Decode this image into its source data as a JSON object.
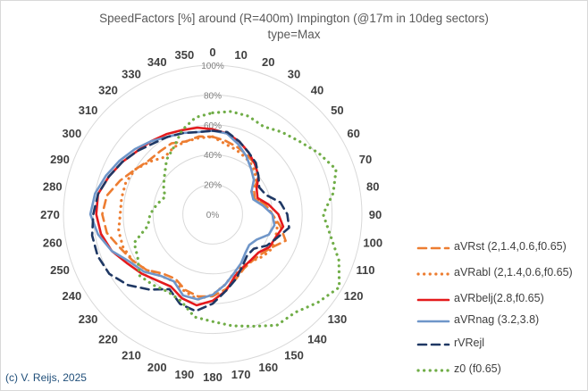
{
  "credit": "(c) V. Reijs, 2025",
  "chart_data": {
    "type": "radar",
    "title": "SpeedFactors [%] around (R=400m) Impington (@17m in 10deg sectors)",
    "subtitle": "type=Max",
    "angles": [
      "0",
      "10",
      "20",
      "30",
      "40",
      "50",
      "60",
      "70",
      "80",
      "90",
      "100",
      "110",
      "120",
      "130",
      "140",
      "150",
      "160",
      "170",
      "180",
      "190",
      "200",
      "210",
      "220",
      "230",
      "240",
      "250",
      "260",
      "270",
      "280",
      "290",
      "300",
      "310",
      "320",
      "330",
      "340",
      "350"
    ],
    "radial_ticks": [
      "0%",
      "20%",
      "40%",
      "60%",
      "80%",
      "100%"
    ],
    "rmax": 100,
    "legend_position": "right",
    "series": [
      {
        "name": "aVRst (2,1.4,0.6,f0.65)",
        "color": "#ed7d31",
        "style": "dash",
        "values": [
          52,
          50,
          48,
          46,
          44,
          40,
          32,
          30,
          36,
          40,
          46,
          52,
          45,
          42,
          41,
          42,
          46,
          51,
          55,
          56,
          54,
          50,
          52,
          58,
          62,
          66,
          72,
          74,
          72,
          66,
          60,
          56,
          55,
          55,
          52,
          53
        ]
      },
      {
        "name": "aVRabl (2,1.4,0.6,f0.65)",
        "color": "#ed7d31",
        "style": "dot",
        "values": [
          52,
          48,
          46,
          44,
          42,
          38,
          30,
          30,
          36,
          40,
          44,
          45,
          46,
          44,
          41,
          40,
          42,
          48,
          54,
          58,
          55,
          52,
          54,
          58,
          62,
          64,
          64,
          62,
          62,
          62,
          60,
          55,
          50,
          52,
          52,
          52
        ]
      },
      {
        "name": "aVRbelj(2.8,f0.65)",
        "color": "#e41a1c",
        "style": "solid",
        "values": [
          57,
          55,
          52,
          48,
          44,
          40,
          34,
          32,
          38,
          44,
          48,
          45,
          44,
          40,
          40,
          41,
          44,
          52,
          58,
          62,
          60,
          56,
          58,
          62,
          66,
          72,
          76,
          78,
          78,
          74,
          70,
          66,
          64,
          62,
          60,
          59
        ]
      },
      {
        "name": "aVRnag (3.2,3.8)",
        "color": "#6f96c9",
        "style": "solid",
        "values": [
          56,
          55,
          50,
          45,
          40,
          36,
          30,
          29,
          34,
          40,
          42,
          40,
          34,
          32,
          34,
          38,
          42,
          48,
          54,
          58,
          58,
          52,
          54,
          60,
          64,
          72,
          78,
          82,
          80,
          76,
          72,
          68,
          64,
          60,
          58,
          56
        ]
      },
      {
        "name": "rVRejl",
        "color": "#1f3864",
        "style": "dash",
        "values": [
          56,
          56,
          52,
          48,
          45,
          40,
          36,
          38,
          46,
          50,
          52,
          46,
          42,
          36,
          36,
          40,
          46,
          52,
          60,
          66,
          64,
          58,
          66,
          74,
          80,
          82,
          82,
          80,
          78,
          74,
          70,
          66,
          62,
          60,
          58,
          56
        ]
      },
      {
        "name": "z0 (f0.65)",
        "color": "#70ad47",
        "style": "dot",
        "values": [
          68,
          70,
          70,
          68,
          72,
          76,
          82,
          88,
          82,
          74,
          80,
          90,
          98,
          92,
          86,
          86,
          80,
          76,
          72,
          70,
          62,
          60,
          62,
          64,
          58,
          56,
          44,
          42,
          38,
          34,
          38,
          42,
          48,
          52,
          60,
          66
        ]
      }
    ]
  }
}
